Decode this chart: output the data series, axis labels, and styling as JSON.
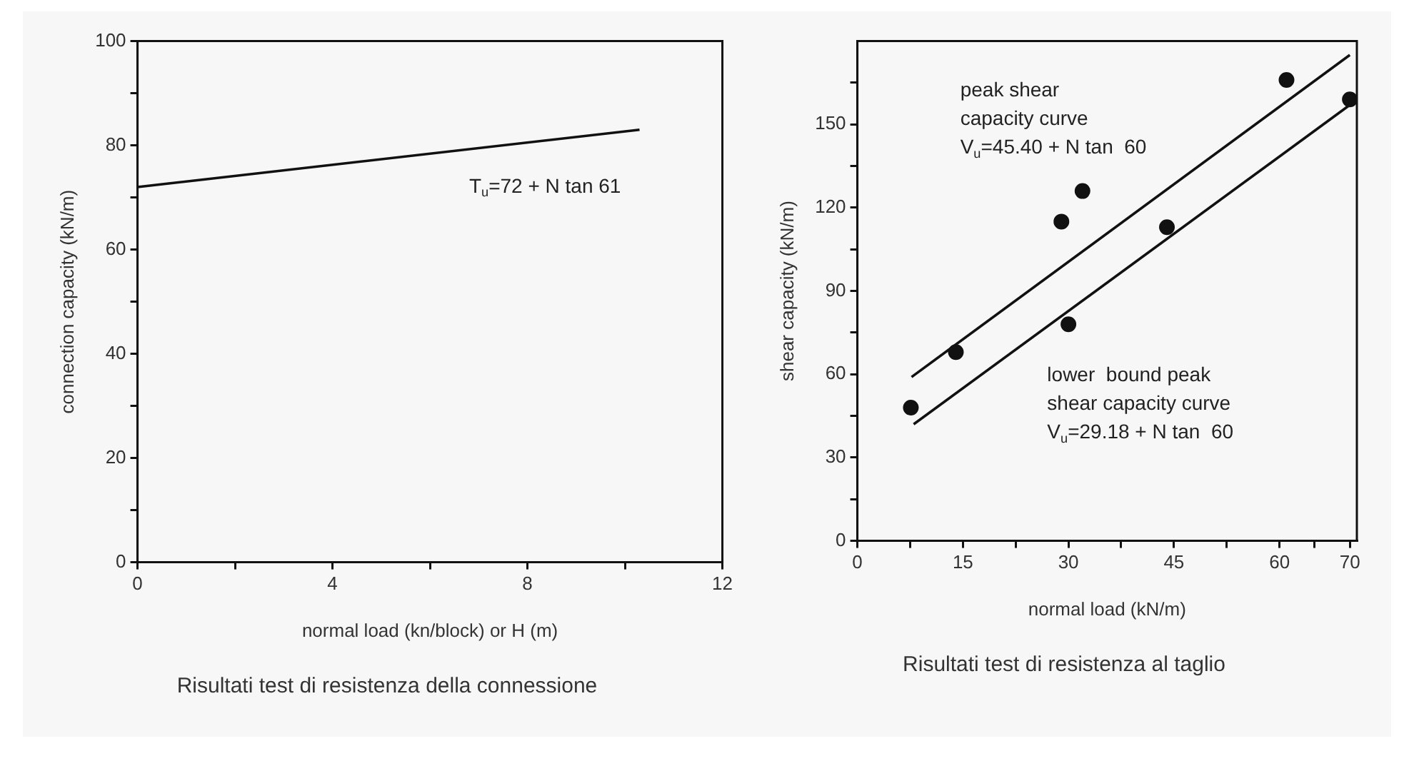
{
  "chart_data": [
    {
      "type": "line",
      "title": "Risultati test di resistenza della connessione",
      "xlabel": "normal load (kn/block) or H (m)",
      "ylabel": "connection capacity (kN/m)",
      "xlim": [
        0,
        12
      ],
      "xticks": [
        0,
        {
          "value": 2,
          "label": null
        },
        4,
        {
          "value": 6,
          "label": null
        },
        8,
        {
          "value": 10,
          "label": null
        },
        12
      ],
      "ylim": [
        0,
        100
      ],
      "yticks": [
        0,
        {
          "value": 10,
          "label": null
        },
        20,
        {
          "value": 30,
          "label": null
        },
        40,
        {
          "value": 50,
          "label": null
        },
        60,
        {
          "value": 70,
          "label": null
        },
        80,
        {
          "value": 90,
          "label": null
        },
        100
      ],
      "grid": false,
      "series": [
        {
          "color": "#111111",
          "x": [
            0,
            10.3
          ],
          "values": [
            72,
            83
          ]
        }
      ],
      "annotations": [
        "T$_{u}$=72 + N tan 61"
      ]
    },
    {
      "type": "scatter",
      "title": "Risultati test di resistenza al taglio",
      "xlabel": "normal load (kN/m)",
      "ylabel": "shear capacity (kN/m)",
      "xlim": [
        0,
        71
      ],
      "xticks": [
        0,
        {
          "value": 7.5,
          "label": null
        },
        15,
        {
          "value": 22.5,
          "label": null
        },
        30,
        {
          "value": 37.5,
          "label": null
        },
        45,
        {
          "value": 52.5,
          "label": null
        },
        60,
        {
          "value": 65,
          "label": null
        },
        70
      ],
      "ylim": [
        0,
        180
      ],
      "yticks": [
        0,
        {
          "value": 15,
          "label": null
        },
        30,
        {
          "value": 45,
          "label": null
        },
        60,
        {
          "value": 75,
          "label": null
        },
        90,
        {
          "value": 105,
          "label": null
        },
        120,
        {
          "value": 135,
          "label": null
        },
        150,
        {
          "value": 165,
          "label": null
        }
      ],
      "grid": false,
      "series": [
        {
          "color": "#111111",
          "marker": "circle",
          "x": [
            7.6,
            14,
            29,
            30,
            32,
            44,
            61,
            70
          ],
          "values": [
            48,
            68,
            115,
            78,
            126,
            113,
            166,
            159
          ]
        },
        {
          "type": "line",
          "color": "#111111",
          "x": [
            7.7,
            70
          ],
          "values": [
            59,
            175
          ]
        },
        {
          "type": "line",
          "color": "#111111",
          "x": [
            8,
            70
          ],
          "values": [
            42,
            157
          ]
        }
      ],
      "annotations": [
        "peak shear\ncapacity curve\nV$_{u}$=45.40 + N tan  60",
        "lower  bound peak\nshear capacity curve\nV$_{u}$=29.18 + N tan  60"
      ]
    }
  ]
}
